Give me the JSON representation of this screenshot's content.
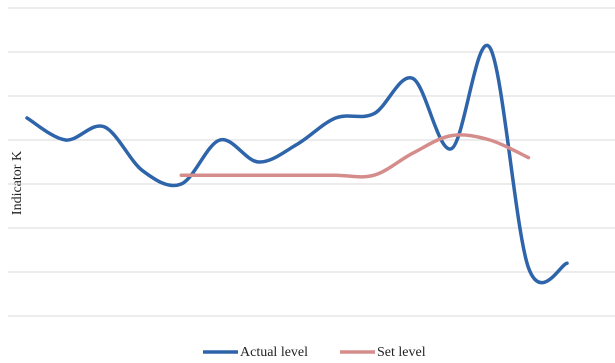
{
  "chart_data": {
    "type": "line",
    "y_label": "Indicator K",
    "categories": [
      null,
      null,
      null,
      null,
      null,
      null,
      null,
      null,
      null,
      null,
      null,
      null,
      null,
      null,
      null
    ],
    "series": [
      {
        "name": "Actual level",
        "color": "#2e64a9",
        "values": [
          4.5,
          4.0,
          4.3,
          3.3,
          3.0,
          4.0,
          3.5,
          3.9,
          4.5,
          4.6,
          5.4,
          3.8,
          6.1,
          1.1,
          1.2
        ]
      },
      {
        "name": "Set level",
        "color": "#d48d8b",
        "values": [
          null,
          null,
          null,
          null,
          3.2,
          3.2,
          3.2,
          3.2,
          3.2,
          3.2,
          3.7,
          4.1,
          4.0,
          3.6,
          null
        ]
      }
    ],
    "ylim": [
      0,
      7
    ],
    "yticks": [
      0,
      1,
      2,
      3,
      4,
      5,
      6,
      7
    ],
    "grid": true,
    "legend": "bottom"
  }
}
